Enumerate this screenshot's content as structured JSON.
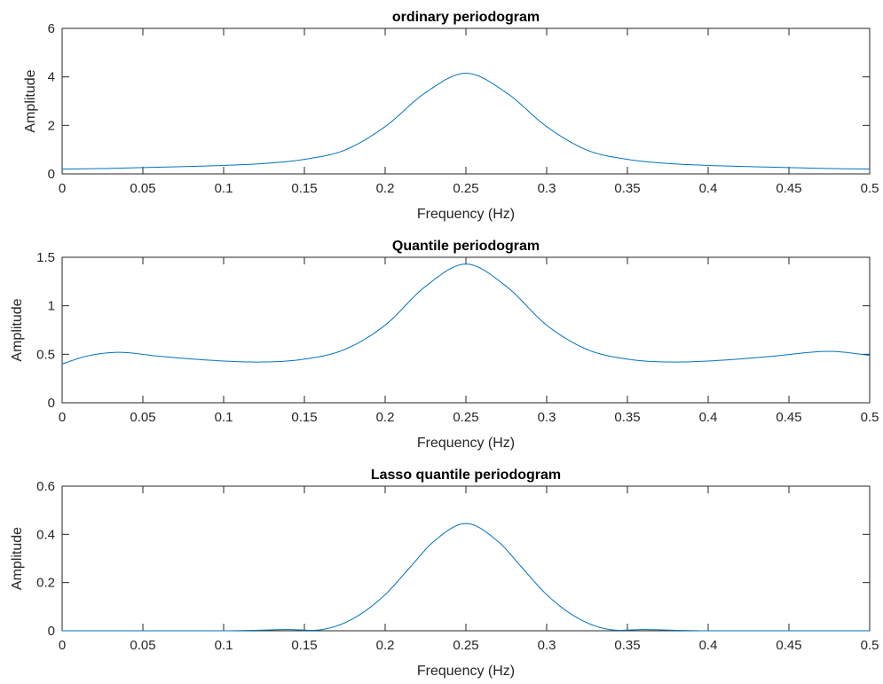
{
  "colors": {
    "line": "#0072bd",
    "axis": "#262626",
    "background": "#ffffff"
  },
  "chart_data": [
    {
      "type": "line",
      "title": "ordinary periodogram",
      "xlabel": "Frequency (Hz)",
      "ylabel": "Amplitude",
      "xlim": [
        0,
        0.5
      ],
      "ylim": [
        0,
        6
      ],
      "xticks": [
        0,
        0.05,
        0.1,
        0.15,
        0.2,
        0.25,
        0.3,
        0.35,
        0.4,
        0.45,
        0.5
      ],
      "xtick_labels": [
        "0",
        "0.05",
        "0.1",
        "0.15",
        "0.2",
        "0.25",
        "0.3",
        "0.35",
        "0.4",
        "0.45",
        "0.5"
      ],
      "yticks": [
        0,
        2,
        4,
        6
      ],
      "ytick_labels": [
        "0",
        "2",
        "4",
        "6"
      ],
      "grid": false,
      "series": [
        {
          "x": [
            0,
            0.025,
            0.05,
            0.075,
            0.1,
            0.125,
            0.15,
            0.175,
            0.2,
            0.225,
            0.25,
            0.275,
            0.3,
            0.325,
            0.35,
            0.375,
            0.4,
            0.425,
            0.45,
            0.475,
            0.5
          ],
          "y": [
            0.2,
            0.22,
            0.26,
            0.3,
            0.35,
            0.43,
            0.6,
            0.98,
            1.95,
            3.35,
            4.15,
            3.35,
            1.95,
            0.98,
            0.6,
            0.43,
            0.35,
            0.3,
            0.26,
            0.22,
            0.2
          ]
        }
      ]
    },
    {
      "type": "line",
      "title": "Quantile periodogram",
      "xlabel": "Frequency (Hz)",
      "ylabel": "Amplitude",
      "xlim": [
        0,
        0.5
      ],
      "ylim": [
        0,
        1.5
      ],
      "xticks": [
        0,
        0.05,
        0.1,
        0.15,
        0.2,
        0.25,
        0.3,
        0.35,
        0.4,
        0.45,
        0.5
      ],
      "xtick_labels": [
        "0",
        "0.05",
        "0.1",
        "0.15",
        "0.2",
        "0.25",
        "0.3",
        "0.35",
        "0.4",
        "0.45",
        "0.5"
      ],
      "yticks": [
        0,
        0.5,
        1,
        1.5
      ],
      "ytick_labels": [
        "0",
        "0.5",
        "1",
        "1.5"
      ],
      "grid": false,
      "series": [
        {
          "x": [
            0,
            0.015,
            0.035,
            0.06,
            0.09,
            0.12,
            0.15,
            0.175,
            0.2,
            0.225,
            0.25,
            0.275,
            0.3,
            0.325,
            0.35,
            0.38,
            0.41,
            0.44,
            0.475,
            0.5
          ],
          "y": [
            0.4,
            0.48,
            0.52,
            0.48,
            0.44,
            0.42,
            0.45,
            0.55,
            0.8,
            1.2,
            1.43,
            1.2,
            0.8,
            0.55,
            0.45,
            0.42,
            0.44,
            0.48,
            0.53,
            0.49
          ]
        }
      ]
    },
    {
      "type": "line",
      "title": "Lasso quantile periodogram",
      "xlabel": "Frequency (Hz)",
      "ylabel": "Amplitude",
      "xlim": [
        0,
        0.5
      ],
      "ylim": [
        0,
        0.6
      ],
      "xticks": [
        0,
        0.05,
        0.1,
        0.15,
        0.2,
        0.25,
        0.3,
        0.35,
        0.4,
        0.45,
        0.5
      ],
      "xtick_labels": [
        "0",
        "0.05",
        "0.1",
        "0.15",
        "0.2",
        "0.25",
        "0.3",
        "0.35",
        "0.4",
        "0.45",
        "0.5"
      ],
      "yticks": [
        0,
        0.2,
        0.4,
        0.6
      ],
      "ytick_labels": [
        "0",
        "0.2",
        "0.4",
        "0.6"
      ],
      "grid": false,
      "series": [
        {
          "x": [
            0,
            0.05,
            0.1,
            0.12,
            0.14,
            0.155,
            0.17,
            0.185,
            0.2,
            0.215,
            0.23,
            0.25,
            0.27,
            0.285,
            0.3,
            0.315,
            0.33,
            0.345,
            0.36,
            0.38,
            0.4,
            0.45,
            0.5
          ],
          "y": [
            0,
            0,
            0,
            0.002,
            0.005,
            0.002,
            0.02,
            0.07,
            0.15,
            0.26,
            0.37,
            0.445,
            0.37,
            0.26,
            0.15,
            0.07,
            0.02,
            0.002,
            0.005,
            0.002,
            0,
            0,
            0
          ]
        }
      ]
    }
  ]
}
